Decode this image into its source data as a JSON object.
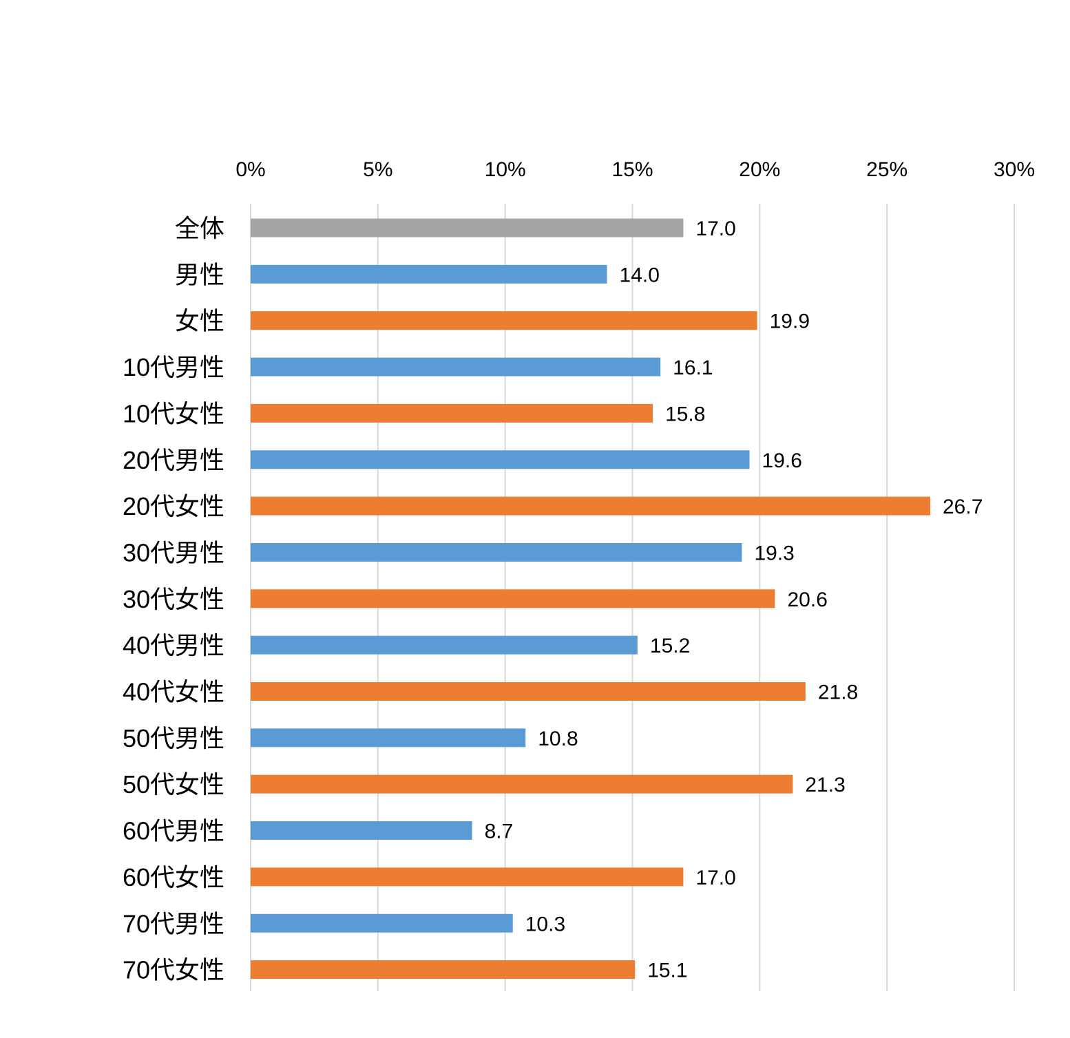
{
  "chart_data": {
    "type": "bar",
    "orientation": "horizontal",
    "x_axis_position": "top",
    "xlim": [
      0,
      30
    ],
    "x_ticks": [
      "0%",
      "5%",
      "10%",
      "15%",
      "20%",
      "25%",
      "30%"
    ],
    "x_tick_values": [
      0,
      5,
      10,
      15,
      20,
      25,
      30
    ],
    "grid": true,
    "legend": false,
    "categories": [
      "全体",
      "男性",
      "女性",
      "10代男性",
      "10代女性",
      "20代男性",
      "20代女性",
      "30代男性",
      "30代女性",
      "40代男性",
      "40代女性",
      "50代男性",
      "50代女性",
      "60代男性",
      "60代女性",
      "70代男性",
      "70代女性"
    ],
    "values": [
      17.0,
      14.0,
      19.9,
      16.1,
      15.8,
      19.6,
      26.7,
      19.3,
      20.6,
      15.2,
      21.8,
      10.8,
      21.3,
      8.7,
      17.0,
      10.3,
      15.1
    ],
    "value_labels": [
      "17.0",
      "14.0",
      "19.9",
      "16.1",
      "15.8",
      "19.6",
      "26.7",
      "19.3",
      "20.6",
      "15.2",
      "21.8",
      "10.8",
      "21.3",
      "8.7",
      "17.0",
      "10.3",
      "15.1"
    ],
    "bar_groups": [
      "total",
      "male",
      "female",
      "male",
      "female",
      "male",
      "female",
      "male",
      "female",
      "male",
      "female",
      "male",
      "female",
      "male",
      "female",
      "male",
      "female"
    ],
    "colors": {
      "total": "#a5a5a5",
      "male": "#5b9bd5",
      "female": "#ed7d31",
      "grid": "#d9d9d9"
    }
  }
}
